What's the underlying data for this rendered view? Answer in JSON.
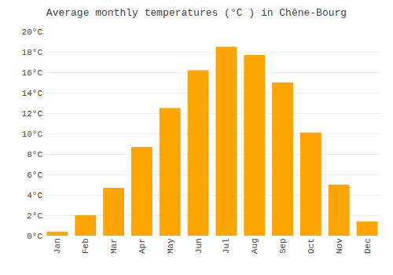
{
  "chart_data": {
    "type": "bar",
    "title": "Average monthly temperatures (°C ) in Chêne-Bourg",
    "categories": [
      "Jan",
      "Feb",
      "Mar",
      "Apr",
      "May",
      "Jun",
      "Jul",
      "Aug",
      "Sep",
      "Oct",
      "Nov",
      "Dec"
    ],
    "values": [
      0.4,
      2.0,
      4.7,
      8.7,
      12.5,
      16.2,
      18.5,
      17.7,
      15.0,
      10.1,
      5.0,
      1.4
    ],
    "color": "#FFA500",
    "ylim": [
      0,
      20
    ],
    "yticks": [
      {
        "value": 0,
        "label": "0°C"
      },
      {
        "value": 2,
        "label": "2°C"
      },
      {
        "value": 4,
        "label": "4°C"
      },
      {
        "value": 6,
        "label": "6°C"
      },
      {
        "value": 8,
        "label": "8°C"
      },
      {
        "value": 10,
        "label": "10°C"
      },
      {
        "value": 12,
        "label": "12°C"
      },
      {
        "value": 14,
        "label": "14°C"
      },
      {
        "value": 16,
        "label": "16°C"
      },
      {
        "value": 18,
        "label": "18°C"
      },
      {
        "value": 20,
        "label": "20°C"
      }
    ],
    "grid": true
  }
}
